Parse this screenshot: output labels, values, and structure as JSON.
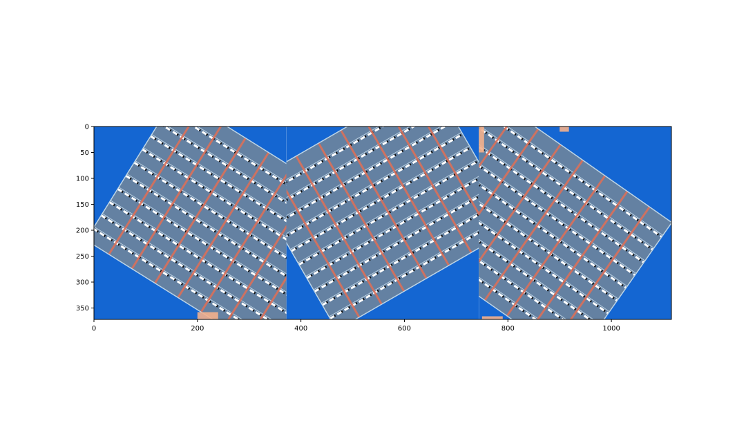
{
  "chart_data": {
    "type": "image",
    "title": "",
    "xlabel": "",
    "ylabel": "",
    "xlim": [
      0,
      1116
    ],
    "ylim": [
      372,
      0
    ],
    "x_ticks": [
      0,
      200,
      400,
      600,
      800,
      1000
    ],
    "x_tick_labels": [
      "0",
      "200",
      "400",
      "600",
      "800",
      "1000"
    ],
    "y_ticks": [
      0,
      50,
      100,
      150,
      200,
      250,
      300,
      350
    ],
    "y_tick_labels": [
      "0",
      "50",
      "100",
      "150",
      "200",
      "250",
      "300",
      "350"
    ],
    "panels": [
      {
        "name": "",
        "x_range": [
          0,
          372
        ],
        "content": "rotated glass building facade on blue sky"
      },
      {
        "name": "",
        "x_range": [
          372,
          744
        ],
        "content": "rotated glass building facade on blue sky"
      },
      {
        "name": "",
        "x_range": [
          744,
          1116
        ],
        "content": "rotated glass building facade on blue sky"
      }
    ],
    "colors": {
      "sky": "#1466d2",
      "glass": "#2f6f86",
      "mullion": "#ffffff",
      "beam": "#d9705a",
      "overlay": "#c9a3d6",
      "wall": "#f4b08c"
    }
  }
}
